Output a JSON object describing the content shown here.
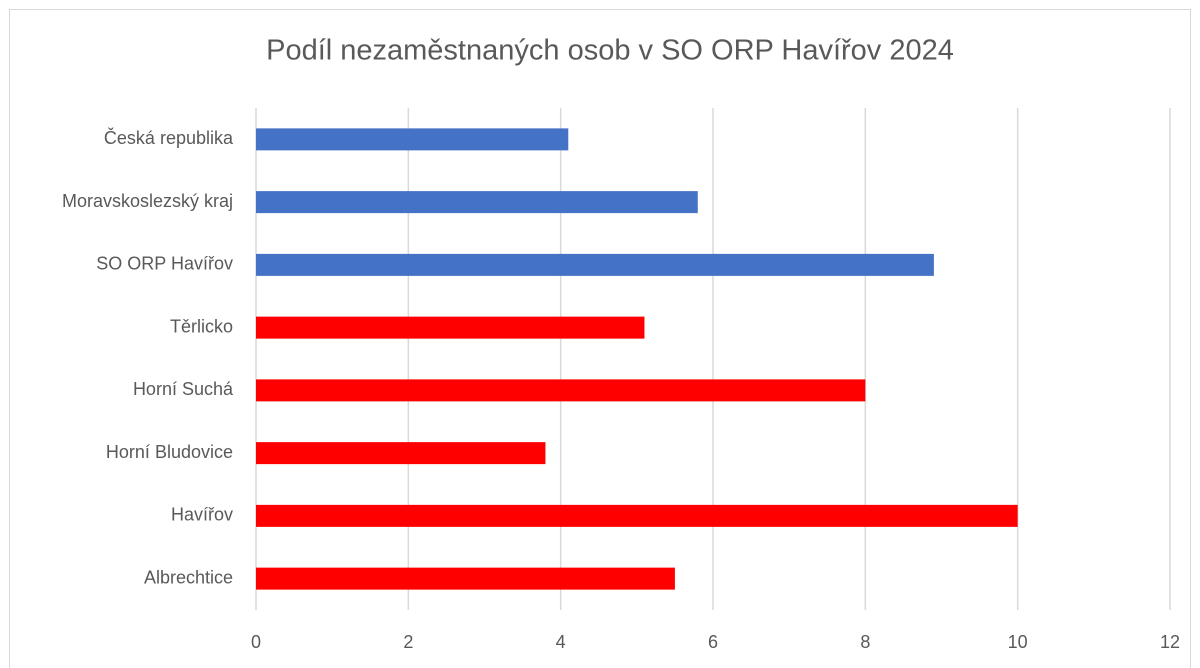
{
  "chart_data": {
    "type": "bar",
    "orientation": "horizontal",
    "title": "Podíl nezaměstnaných osob v SO ORP Havířov 2024",
    "categories": [
      "Česká republika",
      "Moravskoslezský kraj",
      "SO ORP Havířov ",
      "Těrlicko",
      "Horní Suchá",
      "Horní Bludovice",
      "Havířov",
      "Albrechtice"
    ],
    "values": [
      4.1,
      5.8,
      8.9,
      5.1,
      8.0,
      3.8,
      10.0,
      5.5
    ],
    "colors": [
      "#4472c4",
      "#4472c4",
      "#4472c4",
      "#ff0000",
      "#ff0000",
      "#ff0000",
      "#ff0000",
      "#ff0000"
    ],
    "xlim": [
      0,
      12
    ],
    "xticks": [
      0,
      2,
      4,
      6,
      8,
      10,
      12
    ],
    "grid": true
  }
}
